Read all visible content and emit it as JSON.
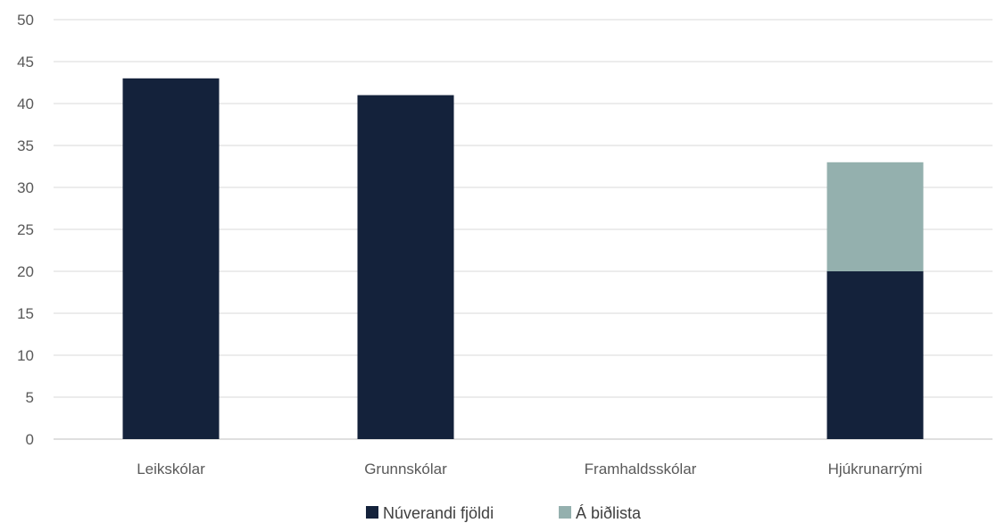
{
  "chart_data": {
    "type": "bar",
    "stacked": true,
    "categories": [
      "Leikskólar",
      "Grunnskólar",
      "Framhaldsskólar",
      "Hjúkrunarrými"
    ],
    "series": [
      {
        "name": "Núverandi fjöldi",
        "values": [
          43,
          41,
          0,
          20
        ],
        "color": "#14223b"
      },
      {
        "name": "Á biðlista",
        "values": [
          0,
          0,
          0,
          13
        ],
        "color": "#94b0ae"
      }
    ],
    "y_ticks": [
      "0",
      "5",
      "10",
      "15",
      "20",
      "25",
      "30",
      "35",
      "40",
      "45",
      "50"
    ],
    "ylim": [
      0,
      50
    ],
    "grid": true,
    "legend_position": "bottom",
    "title": "",
    "xlabel": "",
    "ylabel": ""
  }
}
